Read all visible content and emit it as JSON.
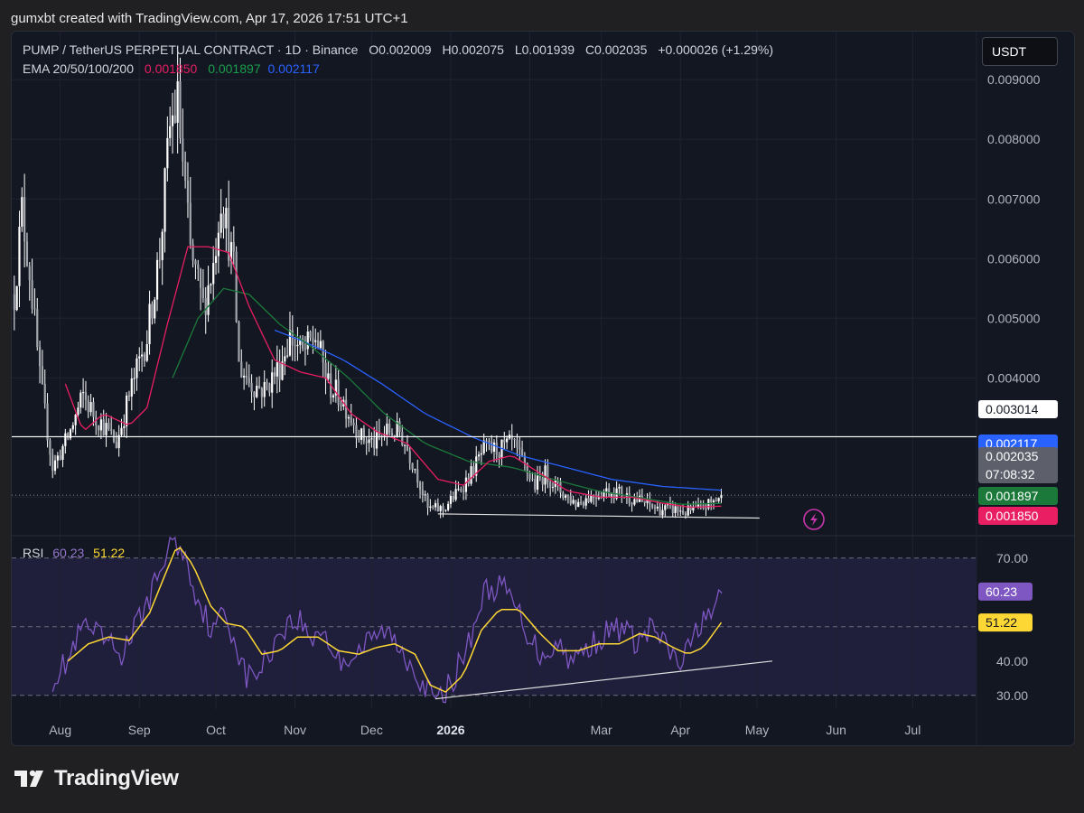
{
  "credit": "gumxbt created with TradingView.com, Apr 17, 2026 17:51 UTC+1",
  "header": {
    "symbol": "PUMP / TetherUS PERPETUAL CONTRACT · 1D · Binance",
    "open": "O0.002009",
    "high": "H0.002075",
    "low": "L0.001939",
    "close": "C0.002035",
    "change": "+0.000026 (+1.29%)",
    "ema_label": "EMA 20/50/100/200",
    "ema20": "0.001850",
    "ema50": "0.001897",
    "ema100": "0.002117"
  },
  "currency_button": "USDT",
  "footer_brand": "TradingView",
  "colors": {
    "background": "#131722",
    "candle": "#ffffff",
    "ema20": "#e91e63",
    "ema50": "#1b7a3a",
    "ema100": "#2962ff",
    "rsi": "#7e57c2",
    "rsi_ma": "#fdd835",
    "rsi_band": "#2a2450",
    "current_price_badge": "#5d606b"
  },
  "chart_data": [
    {
      "type": "candlestick",
      "title": "PUMP / TetherUS PERPETUAL CONTRACT · 1D · Binance",
      "x_ticks": [
        "Aug",
        "Sep",
        "Oct",
        "Nov",
        "Dec",
        "2026",
        "Mar",
        "Apr",
        "May",
        "Jun",
        "Jul"
      ],
      "y_ticks": [
        "0.009000",
        "0.008000",
        "0.007000",
        "0.006000",
        "0.005000",
        "0.004000"
      ],
      "ylim": [
        0.0014,
        0.0092
      ],
      "xlim": [
        "2025-07-13",
        "2026-07-26"
      ],
      "price_axis_labels": [
        {
          "name": "horizontal-level",
          "value": "0.003014",
          "num": 0.003014
        },
        {
          "name": "ema100",
          "value": "0.002117",
          "num": 0.002117
        },
        {
          "name": "current-price",
          "value": "0.002035",
          "num": 0.002035,
          "countdown": "07:08:32"
        },
        {
          "name": "ema50",
          "value": "0.001897",
          "num": 0.001897
        },
        {
          "name": "ema20",
          "value": "0.001850",
          "num": 0.00185
        }
      ],
      "horizontal_line": 0.003014,
      "trendline": {
        "from": [
          "2025-12-27",
          0.00172
        ],
        "to": [
          "2026-05-02",
          0.00165
        ]
      },
      "close_anchors": [
        [
          "2025-07-14",
          0.0054
        ],
        [
          "2025-07-17",
          0.0068
        ],
        [
          "2025-07-20",
          0.0058
        ],
        [
          "2025-07-24",
          0.004
        ],
        [
          "2025-07-29",
          0.0025
        ],
        [
          "2025-08-04",
          0.003
        ],
        [
          "2025-08-10",
          0.0037
        ],
        [
          "2025-08-14",
          0.0034
        ],
        [
          "2025-08-18",
          0.0032
        ],
        [
          "2025-08-23",
          0.0029
        ],
        [
          "2025-08-28",
          0.0037
        ],
        [
          "2025-09-04",
          0.0047
        ],
        [
          "2025-09-09",
          0.0061
        ],
        [
          "2025-09-13",
          0.0082
        ],
        [
          "2025-09-16",
          0.0086
        ],
        [
          "2025-09-21",
          0.0061
        ],
        [
          "2025-09-26",
          0.0052
        ],
        [
          "2025-09-30",
          0.0059
        ],
        [
          "2025-10-03",
          0.0071
        ],
        [
          "2025-10-08",
          0.0058
        ],
        [
          "2025-10-10",
          0.0042
        ],
        [
          "2025-10-15",
          0.0039
        ],
        [
          "2025-10-20",
          0.0038
        ],
        [
          "2025-10-26",
          0.0042
        ],
        [
          "2025-10-30",
          0.0047
        ],
        [
          "2025-11-04",
          0.0044
        ],
        [
          "2025-11-09",
          0.0047
        ],
        [
          "2025-11-14",
          0.0039
        ],
        [
          "2025-11-20",
          0.0036
        ],
        [
          "2025-11-27",
          0.003
        ],
        [
          "2025-12-02",
          0.0029
        ],
        [
          "2025-12-07",
          0.0031
        ],
        [
          "2025-12-12",
          0.0031
        ],
        [
          "2025-12-18",
          0.0025
        ],
        [
          "2025-12-23",
          0.0018
        ],
        [
          "2025-12-29",
          0.0018
        ],
        [
          "2026-01-04",
          0.0021
        ],
        [
          "2026-01-09",
          0.0024
        ],
        [
          "2026-01-14",
          0.0028
        ],
        [
          "2026-01-20",
          0.0028
        ],
        [
          "2026-01-25",
          0.0029
        ],
        [
          "2026-01-30",
          0.0025
        ],
        [
          "2026-02-03",
          0.0022
        ],
        [
          "2026-02-07",
          0.0024
        ],
        [
          "2026-02-13",
          0.0021
        ],
        [
          "2026-02-19",
          0.0019
        ],
        [
          "2026-02-24",
          0.002
        ],
        [
          "2026-03-02",
          0.0021
        ],
        [
          "2026-03-07",
          0.0021
        ],
        [
          "2026-03-12",
          0.002
        ],
        [
          "2026-03-18",
          0.0019
        ],
        [
          "2026-03-23",
          0.0018
        ],
        [
          "2026-03-29",
          0.0018
        ],
        [
          "2026-04-03",
          0.00175
        ],
        [
          "2026-04-08",
          0.0018
        ],
        [
          "2026-04-13",
          0.0019
        ],
        [
          "2026-04-17",
          0.002035
        ]
      ],
      "ema20": [
        [
          "2025-08-03",
          0.0039
        ],
        [
          "2025-08-10",
          0.0031
        ],
        [
          "2025-08-18",
          0.0034
        ],
        [
          "2025-08-28",
          0.0032
        ],
        [
          "2025-09-04",
          0.0035
        ],
        [
          "2025-09-12",
          0.0049
        ],
        [
          "2025-09-20",
          0.0062
        ],
        [
          "2025-09-28",
          0.0062
        ],
        [
          "2025-10-06",
          0.0061
        ],
        [
          "2025-10-14",
          0.0052
        ],
        [
          "2025-10-24",
          0.0043
        ],
        [
          "2025-11-03",
          0.0041
        ],
        [
          "2025-11-13",
          0.004
        ],
        [
          "2025-11-23",
          0.0034
        ],
        [
          "2025-12-03",
          0.0031
        ],
        [
          "2025-12-15",
          0.0029
        ],
        [
          "2025-12-27",
          0.0023
        ],
        [
          "2026-01-06",
          0.0022
        ],
        [
          "2026-01-16",
          0.0026
        ],
        [
          "2026-01-25",
          0.0027
        ],
        [
          "2026-02-05",
          0.0024
        ],
        [
          "2026-02-16",
          0.0021
        ],
        [
          "2026-03-01",
          0.002
        ],
        [
          "2026-03-13",
          0.002
        ],
        [
          "2026-03-25",
          0.0019
        ],
        [
          "2026-04-05",
          0.00183
        ],
        [
          "2026-04-17",
          0.00185
        ]
      ],
      "ema50": [
        [
          "2025-09-14",
          0.004
        ],
        [
          "2025-09-24",
          0.005
        ],
        [
          "2025-10-04",
          0.0055
        ],
        [
          "2025-10-14",
          0.0054
        ],
        [
          "2025-10-26",
          0.0049
        ],
        [
          "2025-11-08",
          0.0045
        ],
        [
          "2025-11-22",
          0.004
        ],
        [
          "2025-12-06",
          0.0034
        ],
        [
          "2025-12-22",
          0.0029
        ],
        [
          "2026-01-08",
          0.0026
        ],
        [
          "2026-01-25",
          0.0025
        ],
        [
          "2026-02-10",
          0.0023
        ],
        [
          "2026-02-28",
          0.0021
        ],
        [
          "2026-03-15",
          0.002
        ],
        [
          "2026-04-01",
          0.00188
        ],
        [
          "2026-04-17",
          0.001897
        ]
      ],
      "ema100": [
        [
          "2025-10-24",
          0.0048
        ],
        [
          "2025-11-05",
          0.0046
        ],
        [
          "2025-11-20",
          0.0043
        ],
        [
          "2025-12-05",
          0.0039
        ],
        [
          "2025-12-22",
          0.0034
        ],
        [
          "2026-01-10",
          0.003
        ],
        [
          "2026-01-28",
          0.0027
        ],
        [
          "2026-02-15",
          0.0025
        ],
        [
          "2026-03-05",
          0.0023
        ],
        [
          "2026-03-25",
          0.00218
        ],
        [
          "2026-04-17",
          0.002117
        ]
      ]
    },
    {
      "type": "line",
      "title": "RSI",
      "rsi_value_label": "60.23",
      "rsi_ma_value_label": "51.22",
      "rsi_value": 60.23,
      "rsi_ma_value": 51.22,
      "y_ticks": [
        "70.00",
        "40.00",
        "30.00"
      ],
      "band": [
        30,
        70
      ],
      "middle_line": 50,
      "ylim": [
        26,
        76
      ],
      "trendline": {
        "from": [
          "2025-12-26",
          29
        ],
        "to": [
          "2026-05-07",
          40
        ]
      },
      "rsi_anchors": [
        [
          "2025-07-29",
          35
        ],
        [
          "2025-08-04",
          40
        ],
        [
          "2025-08-10",
          50
        ],
        [
          "2025-08-18",
          46
        ],
        [
          "2025-08-25",
          42
        ],
        [
          "2025-09-01",
          52
        ],
        [
          "2025-09-07",
          62
        ],
        [
          "2025-09-14",
          76
        ],
        [
          "2025-09-18",
          72
        ],
        [
          "2025-09-24",
          58
        ],
        [
          "2025-09-30",
          48
        ],
        [
          "2025-10-04",
          55
        ],
        [
          "2025-10-09",
          45
        ],
        [
          "2025-10-13",
          35
        ],
        [
          "2025-10-19",
          38
        ],
        [
          "2025-10-27",
          50
        ],
        [
          "2025-11-03",
          52
        ],
        [
          "2025-11-07",
          46
        ],
        [
          "2025-11-11",
          50
        ],
        [
          "2025-11-18",
          40
        ],
        [
          "2025-11-24",
          42
        ],
        [
          "2025-12-01",
          46
        ],
        [
          "2025-12-06",
          49
        ],
        [
          "2025-12-12",
          44
        ],
        [
          "2025-12-18",
          38
        ],
        [
          "2025-12-22",
          32
        ],
        [
          "2025-12-27",
          28
        ],
        [
          "2026-01-02",
          35
        ],
        [
          "2026-01-08",
          45
        ],
        [
          "2026-01-14",
          60
        ],
        [
          "2026-01-20",
          62
        ],
        [
          "2026-01-25",
          58
        ],
        [
          "2026-01-30",
          50
        ],
        [
          "2026-02-05",
          42
        ],
        [
          "2026-02-12",
          45
        ],
        [
          "2026-02-18",
          40
        ],
        [
          "2026-02-25",
          45
        ],
        [
          "2026-03-03",
          48
        ],
        [
          "2026-03-09",
          50
        ],
        [
          "2026-03-15",
          45
        ],
        [
          "2026-03-21",
          50
        ],
        [
          "2026-03-27",
          43
        ],
        [
          "2026-04-01",
          39
        ],
        [
          "2026-04-06",
          46
        ],
        [
          "2026-04-10",
          54
        ],
        [
          "2026-04-14",
          52
        ],
        [
          "2026-04-17",
          60.23
        ]
      ],
      "rsi_ma_anchors": [
        [
          "2025-08-04",
          40
        ],
        [
          "2025-08-12",
          45
        ],
        [
          "2025-08-20",
          47
        ],
        [
          "2025-08-28",
          46
        ],
        [
          "2025-09-05",
          54
        ],
        [
          "2025-09-11",
          65
        ],
        [
          "2025-09-16",
          74
        ],
        [
          "2025-09-22",
          68
        ],
        [
          "2025-09-29",
          56
        ],
        [
          "2025-10-05",
          51
        ],
        [
          "2025-10-12",
          50
        ],
        [
          "2025-10-19",
          42
        ],
        [
          "2025-10-26",
          43
        ],
        [
          "2025-11-02",
          47
        ],
        [
          "2025-11-10",
          47
        ],
        [
          "2025-11-18",
          43
        ],
        [
          "2025-11-26",
          42
        ],
        [
          "2025-12-03",
          44
        ],
        [
          "2025-12-10",
          45
        ],
        [
          "2025-12-18",
          42
        ],
        [
          "2025-12-24",
          33
        ],
        [
          "2025-12-30",
          31
        ],
        [
          "2026-01-06",
          36
        ],
        [
          "2026-01-13",
          49
        ],
        [
          "2026-01-20",
          55
        ],
        [
          "2026-01-28",
          55
        ],
        [
          "2026-02-05",
          48
        ],
        [
          "2026-02-12",
          43
        ],
        [
          "2026-02-20",
          43
        ],
        [
          "2026-02-28",
          45
        ],
        [
          "2026-03-08",
          45
        ],
        [
          "2026-03-16",
          48
        ],
        [
          "2026-03-22",
          47
        ],
        [
          "2026-03-29",
          44
        ],
        [
          "2026-04-04",
          42
        ],
        [
          "2026-04-10",
          44
        ],
        [
          "2026-04-17",
          51.22
        ]
      ]
    }
  ]
}
